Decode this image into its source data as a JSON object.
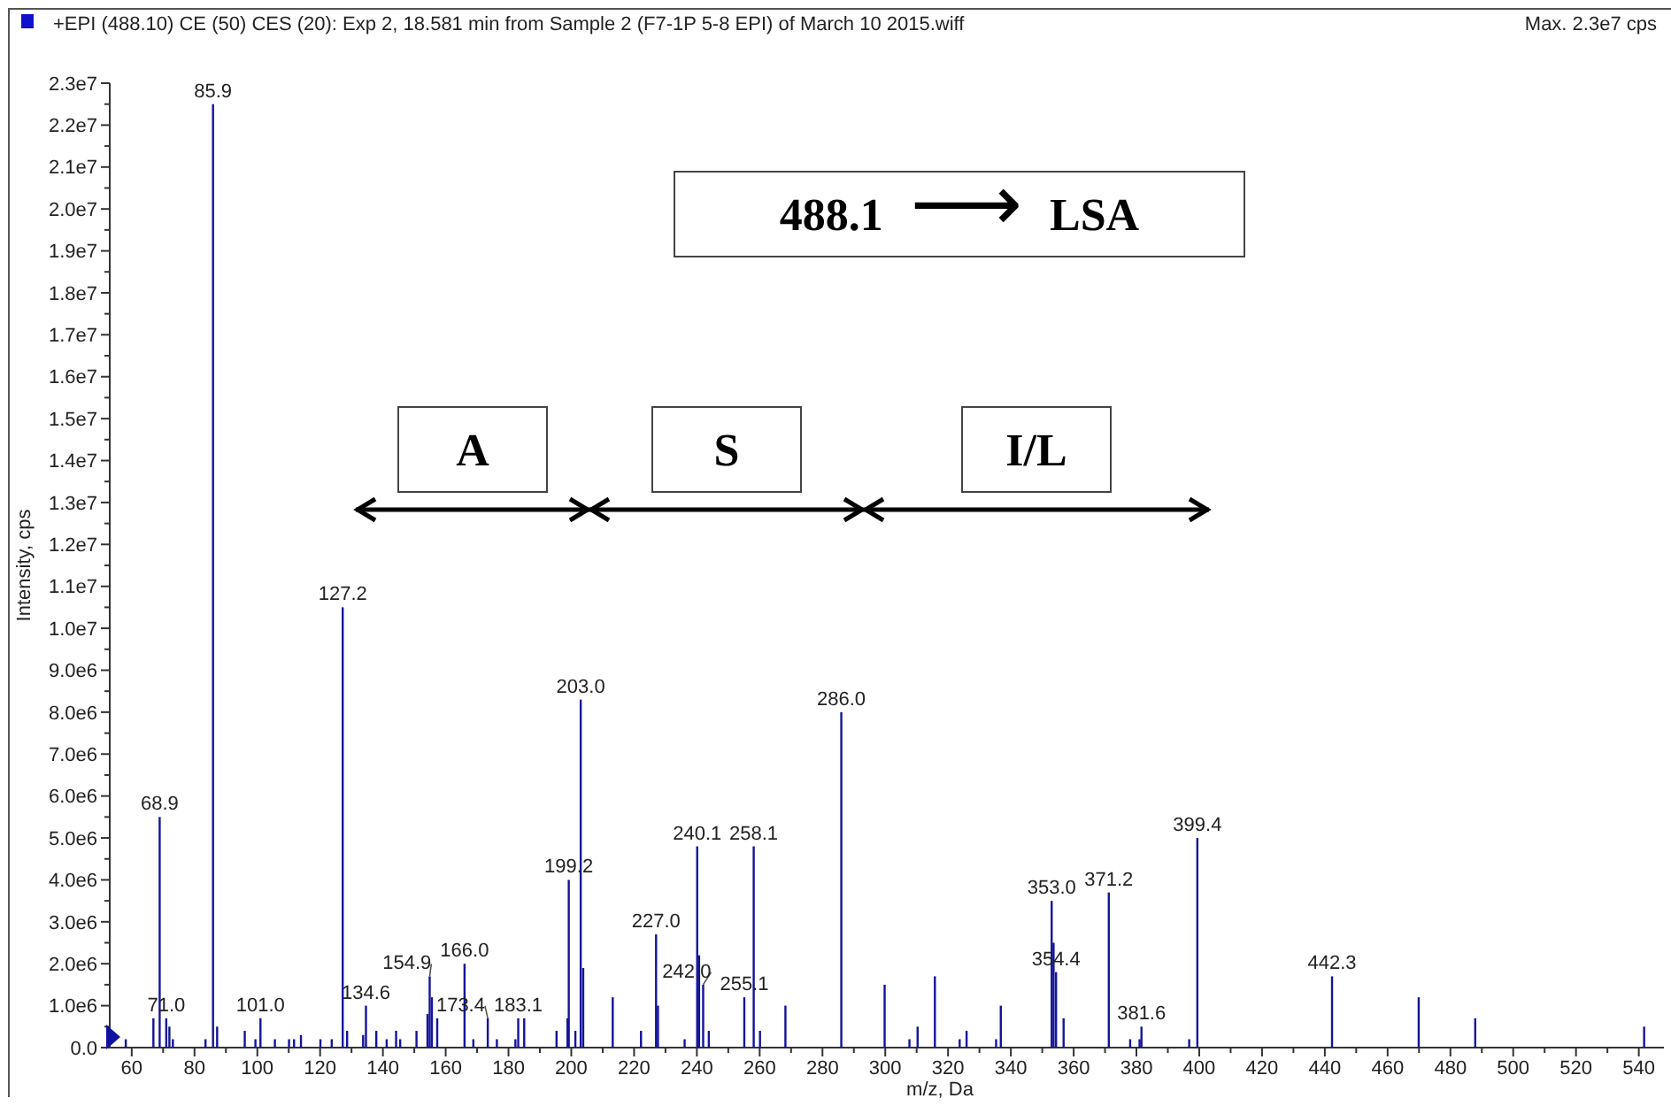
{
  "chart_data": {
    "type": "bar",
    "title": "+EPI (488.10) CE (50) CES (20): Exp 2, 18.581 min from Sample 2 (F7-1P 5-8 EPI) of March 10 2015.wiff",
    "subtitle": "Max. 2.3e7 cps",
    "xlabel": "m/z, Da",
    "ylabel": "Intensity, cps",
    "color": "#14149b",
    "x": [
      58.1,
      66.9,
      68.9,
      71.0,
      72.0,
      73.1,
      83.5,
      85.9,
      87.2,
      96.0,
      99.4,
      101.0,
      105.6,
      110.1,
      111.7,
      113.9,
      120.1,
      123.7,
      127.2,
      128.6,
      133.7,
      134.6,
      137.9,
      141.2,
      144.2,
      145.5,
      150.7,
      154.2,
      154.9,
      155.6,
      157.3,
      166.0,
      168.8,
      173.4,
      176.3,
      182.2,
      183.1,
      185.0,
      195.3,
      198.8,
      199.2,
      201.3,
      203.0,
      203.8,
      213.2,
      222.2,
      227.0,
      227.6,
      236.1,
      240.1,
      240.7,
      242.0,
      243.8,
      255.1,
      258.1,
      260.1,
      268.2,
      286.0,
      299.8,
      307.7,
      310.3,
      315.8,
      323.7,
      325.9,
      335.3,
      336.8,
      353.0,
      353.6,
      354.4,
      356.8,
      371.2,
      378.0,
      381.0,
      381.6,
      396.8,
      399.4,
      442.3,
      469.9,
      487.9,
      541.7
    ],
    "values": [
      200000,
      700000,
      5500000,
      700000,
      500000,
      200000,
      200000,
      22500000,
      500000,
      400000,
      200000,
      700000,
      200000,
      200000,
      200000,
      300000,
      200000,
      200000,
      10500000,
      400000,
      300000,
      1000000,
      400000,
      200000,
      400000,
      200000,
      400000,
      800000,
      1700000,
      1200000,
      700000,
      2000000,
      200000,
      700000,
      200000,
      200000,
      700000,
      700000,
      400000,
      700000,
      4000000,
      400000,
      8300000,
      1900000,
      1200000,
      400000,
      2700000,
      1000000,
      200000,
      4800000,
      2200000,
      1500000,
      400000,
      1200000,
      4800000,
      400000,
      1000000,
      8000000,
      1500000,
      200000,
      500000,
      1700000,
      200000,
      400000,
      200000,
      1000000,
      3500000,
      2500000,
      1800000,
      700000,
      3700000,
      200000,
      200000,
      500000,
      200000,
      5000000,
      1700000,
      1200000,
      700000,
      500000
    ],
    "xlim": [
      53,
      548
    ],
    "xticks": [
      60,
      {
        "value": 70,
        "label": null
      },
      80,
      {
        "value": 90,
        "label": null
      },
      100,
      {
        "value": 110,
        "label": null
      },
      120,
      {
        "value": 130,
        "label": null
      },
      140,
      {
        "value": 150,
        "label": null
      },
      160,
      {
        "value": 170,
        "label": null
      },
      180,
      {
        "value": 190,
        "label": null
      },
      200,
      {
        "value": 210,
        "label": null
      },
      220,
      {
        "value": 230,
        "label": null
      },
      240,
      {
        "value": 250,
        "label": null
      },
      260,
      {
        "value": 270,
        "label": null
      },
      280,
      {
        "value": 290,
        "label": null
      },
      300,
      {
        "value": 310,
        "label": null
      },
      320,
      {
        "value": 330,
        "label": null
      },
      340,
      {
        "value": 350,
        "label": null
      },
      360,
      {
        "value": 370,
        "label": null
      },
      380,
      {
        "value": 390,
        "label": null
      },
      400,
      {
        "value": 410,
        "label": null
      },
      420,
      {
        "value": 430,
        "label": null
      },
      440,
      {
        "value": 450,
        "label": null
      },
      460,
      {
        "value": 470,
        "label": null
      },
      480,
      {
        "value": 490,
        "label": null
      },
      500,
      {
        "value": 510,
        "label": null
      },
      520,
      {
        "value": 530,
        "label": null
      },
      540
    ],
    "ylim": [
      0,
      23000000
    ],
    "yticks": [
      {
        "value": 0,
        "label": "0.0"
      },
      {
        "value": 500000,
        "label": null
      },
      {
        "value": 1000000,
        "label": "1.0e6"
      },
      {
        "value": 1500000,
        "label": null
      },
      {
        "value": 2000000,
        "label": "2.0e6"
      },
      {
        "value": 2500000,
        "label": null
      },
      {
        "value": 3000000,
        "label": "3.0e6"
      },
      {
        "value": 3500000,
        "label": null
      },
      {
        "value": 4000000,
        "label": "4.0e6"
      },
      {
        "value": 4500000,
        "label": null
      },
      {
        "value": 5000000,
        "label": "5.0e6"
      },
      {
        "value": 5500000,
        "label": null
      },
      {
        "value": 6000000,
        "label": "6.0e6"
      },
      {
        "value": 6500000,
        "label": null
      },
      {
        "value": 7000000,
        "label": "7.0e6"
      },
      {
        "value": 7500000,
        "label": null
      },
      {
        "value": 8000000,
        "label": "8.0e6"
      },
      {
        "value": 8500000,
        "label": null
      },
      {
        "value": 9000000,
        "label": "9.0e6"
      },
      {
        "value": 9500000,
        "label": null
      },
      {
        "value": 10000000,
        "label": "1.0e7"
      },
      {
        "value": 10500000,
        "label": null
      },
      {
        "value": 11000000,
        "label": "1.1e7"
      },
      {
        "value": 11500000,
        "label": null
      },
      {
        "value": 12000000,
        "label": "1.2e7"
      },
      {
        "value": 12500000,
        "label": null
      },
      {
        "value": 13000000,
        "label": "1.3e7"
      },
      {
        "value": 13500000,
        "label": null
      },
      {
        "value": 14000000,
        "label": "1.4e7"
      },
      {
        "value": 14500000,
        "label": null
      },
      {
        "value": 15000000,
        "label": "1.5e7"
      },
      {
        "value": 15500000,
        "label": null
      },
      {
        "value": 16000000,
        "label": "1.6e7"
      },
      {
        "value": 16500000,
        "label": null
      },
      {
        "value": 17000000,
        "label": "1.7e7"
      },
      {
        "value": 17500000,
        "label": null
      },
      {
        "value": 18000000,
        "label": "1.8e7"
      },
      {
        "value": 18500000,
        "label": null
      },
      {
        "value": 19000000,
        "label": "1.9e7"
      },
      {
        "value": 19500000,
        "label": null
      },
      {
        "value": 20000000,
        "label": "2.0e7"
      },
      {
        "value": 20500000,
        "label": null
      },
      {
        "value": 21000000,
        "label": "2.1e7"
      },
      {
        "value": 21500000,
        "label": null
      },
      {
        "value": 22000000,
        "label": "2.2e7"
      },
      {
        "value": 22500000,
        "label": null
      },
      {
        "value": 23000000,
        "label": "2.3e7"
      }
    ],
    "annotations": [
      "488.1 ⟶ LSA",
      "A",
      "S",
      "I/L",
      {
        "text": "68.9",
        "x": 68.9,
        "y": 5500000
      },
      {
        "text": "71.0",
        "x": 71.0,
        "y": 700000
      },
      {
        "text": "85.9",
        "x": 85.9,
        "y": 22500000
      },
      {
        "text": "101.0",
        "x": 101.0,
        "y": 700000
      },
      {
        "text": "127.2",
        "x": 127.2,
        "y": 10500000
      },
      {
        "text": "134.6",
        "x": 134.6,
        "y": 1000000
      },
      {
        "text": "154.9",
        "x": 154.9,
        "y": 1700000
      },
      {
        "text": "166.0",
        "x": 166.0,
        "y": 2000000
      },
      {
        "text": "173.4",
        "x": 173.4,
        "y": 700000
      },
      {
        "text": "183.1",
        "x": 183.1,
        "y": 700000
      },
      {
        "text": "199.2",
        "x": 199.2,
        "y": 4000000
      },
      {
        "text": "203.0",
        "x": 203.0,
        "y": 8300000
      },
      {
        "text": "227.0",
        "x": 227.0,
        "y": 2700000
      },
      {
        "text": "240.1",
        "x": 240.1,
        "y": 4800000
      },
      {
        "text": "242.0",
        "x": 242.0,
        "y": 1500000
      },
      {
        "text": "255.1",
        "x": 255.1,
        "y": 1200000
      },
      {
        "text": "258.1",
        "x": 258.1,
        "y": 4800000
      },
      {
        "text": "286.0",
        "x": 286.0,
        "y": 8000000
      },
      {
        "text": "353.0",
        "x": 353.0,
        "y": 3500000
      },
      {
        "text": "354.4",
        "x": 354.4,
        "y": 1800000
      },
      {
        "text": "371.2",
        "x": 371.2,
        "y": 3700000
      },
      {
        "text": "381.6",
        "x": 381.6,
        "y": 500000
      },
      {
        "text": "399.4",
        "x": 399.4,
        "y": 5000000
      },
      {
        "text": "442.3",
        "x": 442.3,
        "y": 1700000
      }
    ]
  }
}
